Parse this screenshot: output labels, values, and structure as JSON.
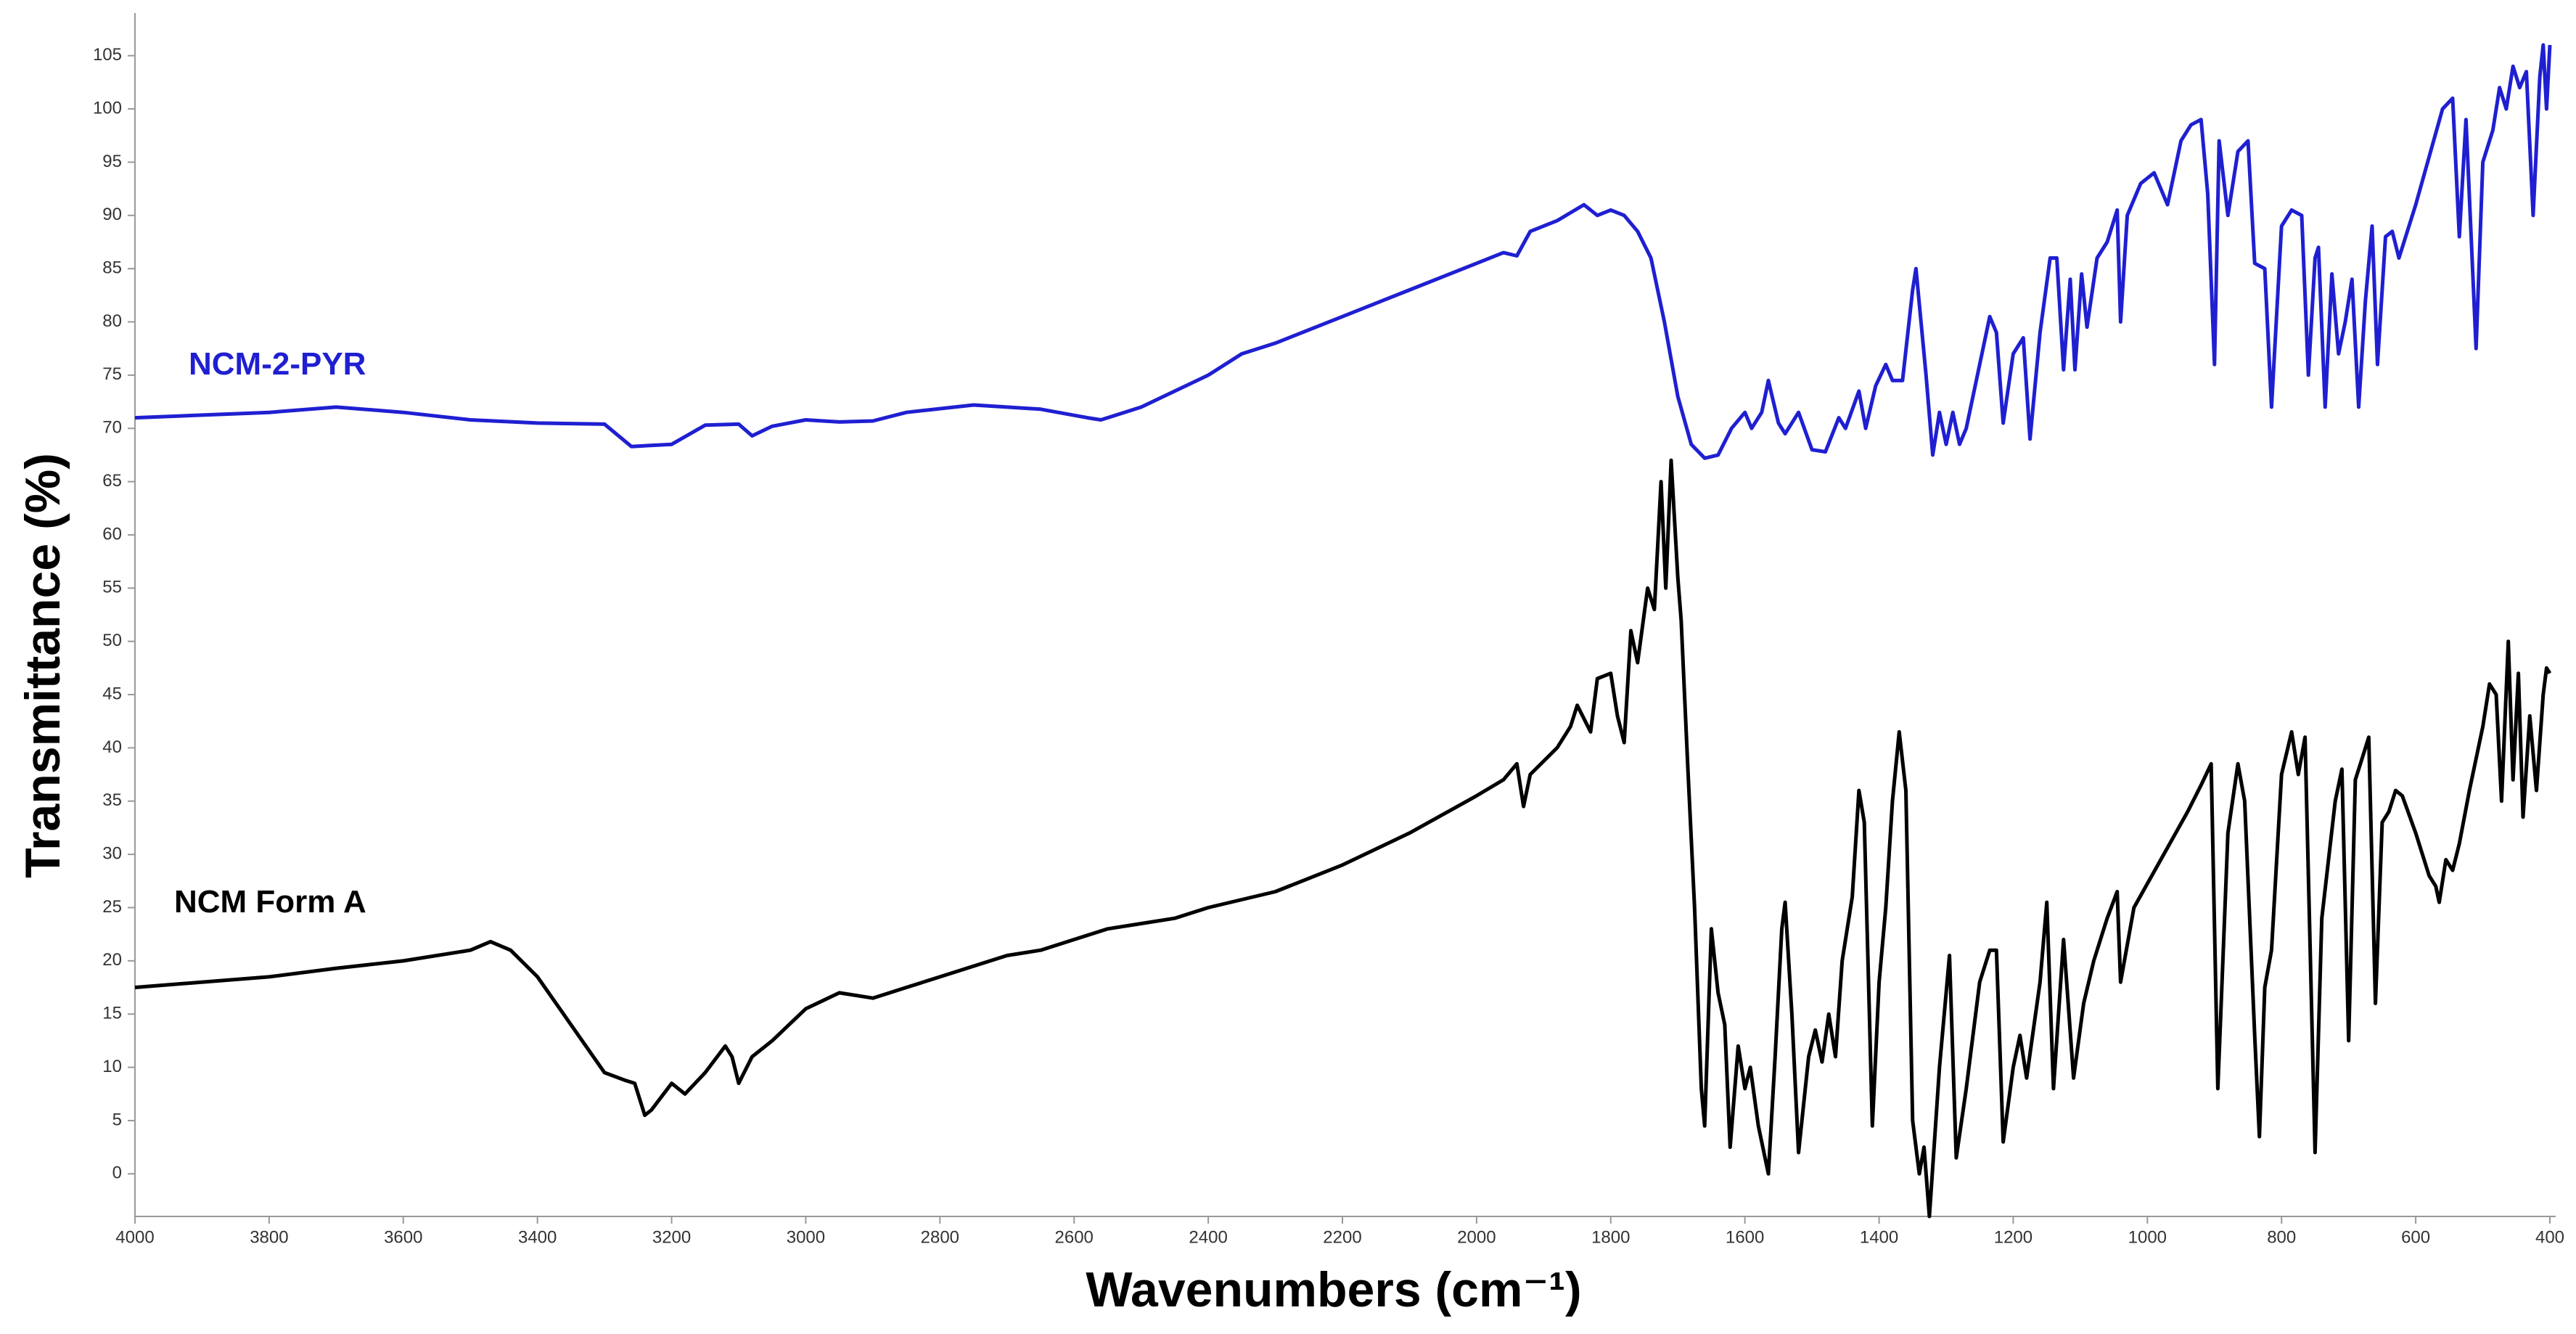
{
  "chart_data": {
    "type": "line",
    "xlabel": "Wavenumbers (cm⁻¹)",
    "ylabel": "Transmittance (%)",
    "xlim": [
      4000,
      400
    ],
    "ylim": [
      -4,
      109
    ],
    "xticks": [
      4000,
      3800,
      3600,
      3400,
      3200,
      3000,
      2800,
      2600,
      2400,
      2200,
      2000,
      1800,
      1600,
      1400,
      1200,
      1000,
      800,
      600,
      400
    ],
    "yticks": [
      0,
      5,
      10,
      15,
      20,
      25,
      30,
      35,
      40,
      45,
      50,
      55,
      60,
      65,
      70,
      75,
      80,
      85,
      90,
      95,
      100,
      105
    ],
    "series": [
      {
        "name": "NCM-2-PYR",
        "color": "#1f1fd1",
        "x": [
          4000,
          3800,
          3700,
          3600,
          3500,
          3400,
          3300,
          3260,
          3200,
          3150,
          3100,
          3080,
          3050,
          3000,
          2950,
          2900,
          2850,
          2750,
          2650,
          2580,
          2560,
          2500,
          2450,
          2400,
          2350,
          2300,
          2200,
          2100,
          2000,
          1960,
          1940,
          1920,
          1880,
          1840,
          1820,
          1800,
          1780,
          1760,
          1740,
          1720,
          1700,
          1680,
          1660,
          1640,
          1620,
          1600,
          1590,
          1575,
          1565,
          1550,
          1540,
          1520,
          1500,
          1480,
          1460,
          1450,
          1430,
          1420,
          1405,
          1390,
          1380,
          1365,
          1350,
          1345,
          1330,
          1320,
          1310,
          1300,
          1290,
          1280,
          1270,
          1250,
          1235,
          1225,
          1215,
          1200,
          1185,
          1175,
          1160,
          1145,
          1135,
          1125,
          1115,
          1108,
          1098,
          1090,
          1075,
          1060,
          1045,
          1040,
          1030,
          1010,
          990,
          970,
          950,
          935,
          920,
          910,
          900,
          893,
          880,
          865,
          850,
          840,
          825,
          815,
          800,
          785,
          770,
          760,
          750,
          745,
          735,
          725,
          715,
          705,
          695,
          685,
          675,
          665,
          657,
          645,
          635,
          625,
          600,
          580,
          560,
          545,
          535,
          525,
          510,
          500,
          485,
          475,
          465,
          455,
          445,
          435,
          425,
          415,
          410,
          405,
          400
        ],
        "values": [
          71,
          71.5,
          72,
          71.5,
          70.8,
          70.5,
          70.4,
          68.3,
          68.5,
          70.3,
          70.4,
          69.3,
          70.2,
          70.8,
          70.6,
          70.7,
          71.5,
          72.2,
          71.8,
          71,
          70.8,
          72,
          73.5,
          75,
          77,
          78,
          80.5,
          83,
          85.5,
          86.5,
          86.2,
          88.5,
          89.5,
          91,
          90,
          90.5,
          90,
          88.5,
          86,
          80,
          73,
          68.5,
          67.2,
          67.5,
          70,
          71.5,
          70,
          71.5,
          74.5,
          70.5,
          69.5,
          71.5,
          68,
          67.8,
          71,
          70,
          73.5,
          70,
          74,
          76,
          74.5,
          74.5,
          83,
          85,
          75,
          67.5,
          71.5,
          68.5,
          71.5,
          68.5,
          70,
          76,
          80.5,
          79,
          70.5,
          77,
          78.5,
          69,
          79,
          86,
          86,
          75.5,
          84,
          75.5,
          84.5,
          79.5,
          86,
          87.5,
          90.5,
          80,
          90,
          93,
          94,
          91,
          97,
          98.5,
          99,
          92,
          76,
          97,
          90,
          96,
          97,
          85.5,
          85,
          72,
          89,
          90.5,
          90,
          75,
          86,
          87,
          72,
          84.5,
          77,
          80,
          84,
          72,
          82,
          89,
          76,
          88,
          88.5,
          86,
          91,
          95.5,
          100,
          101,
          88,
          99,
          77.5,
          95,
          98,
          102,
          100,
          104,
          102,
          103.5,
          90,
          103,
          106,
          100,
          106
        ]
      },
      {
        "name": "NCM Form A",
        "color": "#000000",
        "x": [
          4000,
          3800,
          3700,
          3600,
          3500,
          3470,
          3440,
          3400,
          3350,
          3300,
          3270,
          3255,
          3240,
          3230,
          3200,
          3180,
          3150,
          3120,
          3110,
          3100,
          3080,
          3050,
          3000,
          2950,
          2900,
          2850,
          2800,
          2700,
          2650,
          2600,
          2550,
          2500,
          2450,
          2400,
          2300,
          2200,
          2100,
          2000,
          1960,
          1940,
          1930,
          1920,
          1880,
          1860,
          1850,
          1830,
          1820,
          1800,
          1790,
          1780,
          1770,
          1760,
          1745,
          1735,
          1725,
          1718,
          1710,
          1700,
          1695,
          1685,
          1675,
          1665,
          1660,
          1650,
          1640,
          1630,
          1622,
          1610,
          1600,
          1592,
          1580,
          1565,
          1555,
          1545,
          1540,
          1530,
          1520,
          1505,
          1495,
          1485,
          1475,
          1465,
          1455,
          1440,
          1430,
          1422,
          1410,
          1400,
          1390,
          1380,
          1370,
          1360,
          1350,
          1340,
          1333,
          1325,
          1310,
          1295,
          1285,
          1270,
          1250,
          1235,
          1225,
          1215,
          1200,
          1190,
          1180,
          1160,
          1150,
          1140,
          1125,
          1118,
          1110,
          1095,
          1080,
          1060,
          1045,
          1040,
          1020,
          980,
          940,
          920,
          905,
          895,
          880,
          865,
          855,
          840,
          833,
          825,
          815,
          800,
          785,
          775,
          765,
          750,
          740,
          720,
          710,
          700,
          690,
          680,
          670,
          660,
          650,
          640,
          630,
          620,
          600,
          580,
          570,
          565,
          555,
          545,
          535,
          520,
          500,
          490,
          480,
          472,
          462,
          455,
          447,
          440,
          430,
          420,
          410,
          405,
          400
        ],
        "values": [
          17.5,
          18.5,
          19.3,
          20,
          21,
          21.8,
          21,
          18.5,
          14,
          9.5,
          8.8,
          8.5,
          5.5,
          6,
          8.5,
          7.5,
          9.5,
          12,
          11,
          8.5,
          11,
          12.5,
          15.5,
          17,
          16.5,
          17.5,
          18.5,
          20.5,
          21,
          22,
          23,
          23.5,
          24,
          25,
          26.5,
          29,
          32,
          35.5,
          37,
          38.5,
          34.5,
          37.5,
          40,
          42,
          44,
          41.5,
          46.5,
          47,
          43,
          40.5,
          51,
          48,
          55,
          53,
          65,
          55,
          67,
          56,
          52,
          38,
          25,
          8,
          4.5,
          23,
          17,
          14,
          2.5,
          12,
          8,
          10,
          4.5,
          0,
          11,
          23,
          25.5,
          15,
          2,
          11,
          13.5,
          10.5,
          15,
          11,
          20,
          26,
          36,
          33,
          4.5,
          18,
          25,
          35,
          41.5,
          36,
          5,
          0,
          2.5,
          -4,
          10,
          20.5,
          1.5,
          8,
          18,
          21,
          21,
          3,
          10,
          13,
          9,
          18,
          25.5,
          8,
          22,
          16,
          9,
          16,
          20,
          24,
          26.5,
          18,
          25,
          29.5,
          34,
          36.5,
          38.5,
          8,
          32,
          38.5,
          35,
          13,
          3.5,
          17.5,
          21,
          37.5,
          41.5,
          37.5,
          41,
          2,
          24,
          35,
          38,
          12.5,
          37,
          39,
          41,
          16,
          33,
          34,
          36,
          35.5,
          32,
          28,
          27,
          25.5,
          29.5,
          28.5,
          31,
          36,
          42,
          46,
          45,
          35,
          50,
          37,
          47,
          33.5,
          43,
          36,
          45,
          47.5,
          47
        ]
      }
    ]
  }
}
